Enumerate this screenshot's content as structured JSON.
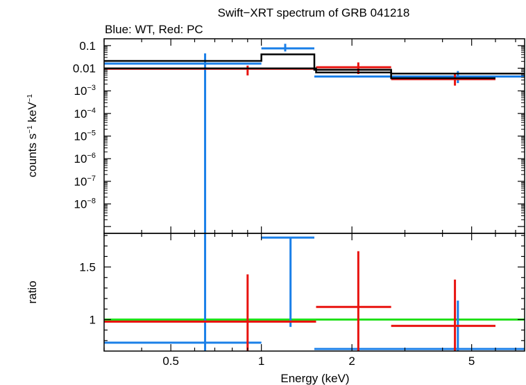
{
  "chart_data": [
    {
      "type": "scatter",
      "panel": "spectrum",
      "title": "Swift−XRT spectrum of GRB 041218",
      "subtitle": "Blue: WT, Red: PC",
      "xlabel": "Energy (keV)",
      "ylabel_parts": [
        "counts s",
        "−1",
        " keV",
        "−1"
      ],
      "x_scale": "log",
      "y_scale": "log",
      "xlim": [
        0.3,
        7.5
      ],
      "ylim": [
        5e-10,
        0.2
      ],
      "y_ticks": [
        {
          "value": 0.1,
          "label": "0.1"
        },
        {
          "value": 0.01,
          "label": "0.01"
        },
        {
          "value": 0.001,
          "base": "10",
          "exp": "−3"
        },
        {
          "value": 0.0001,
          "base": "10",
          "exp": "−4"
        },
        {
          "value": 1e-05,
          "base": "10",
          "exp": "−5"
        },
        {
          "value": 1e-06,
          "base": "10",
          "exp": "−6"
        },
        {
          "value": 1e-07,
          "base": "10",
          "exp": "−7"
        },
        {
          "value": 1e-08,
          "base": "10",
          "exp": "−8"
        }
      ],
      "series": [
        {
          "color": "#1a7fe8",
          "points": [
            {
              "x": 0.65,
              "xlo": 0.3,
              "xhi": 1.0,
              "y": 0.016,
              "ylo": 1e-12,
              "yhi": 0.045
            },
            {
              "x": 1.2,
              "xlo": 1.0,
              "xhi": 1.5,
              "y": 0.075,
              "ylo": 0.055,
              "yhi": 0.12
            },
            {
              "x": 4.5,
              "xlo": 1.5,
              "xhi": 7.5,
              "y": 0.0043,
              "ylo": 0.0022,
              "yhi": 0.0075
            }
          ]
        },
        {
          "color": "#e8120e",
          "points": [
            {
              "x": 0.9,
              "xlo": 0.3,
              "xhi": 1.52,
              "y": 0.0095,
              "ylo": 0.0048,
              "yhi": 0.013
            },
            {
              "x": 2.1,
              "xlo": 1.52,
              "xhi": 2.7,
              "y": 0.011,
              "ylo": 0.0055,
              "yhi": 0.018
            },
            {
              "x": 4.4,
              "xlo": 2.7,
              "xhi": 6.0,
              "y": 0.0033,
              "ylo": 0.0017,
              "yhi": 0.0058
            }
          ]
        }
      ],
      "model_steps": [
        {
          "color": "#000000",
          "steps": [
            {
              "x0": 0.3,
              "x1": 1.0,
              "y": 0.021
            },
            {
              "x0": 1.0,
              "x1": 1.5,
              "y": 0.041
            },
            {
              "x0": 1.5,
              "x1": 2.7,
              "y": 0.0085
            },
            {
              "x0": 2.7,
              "x1": 7.5,
              "y": 0.0058
            }
          ]
        },
        {
          "color": "#000000",
          "steps": [
            {
              "x0": 0.3,
              "x1": 1.52,
              "y": 0.0098
            },
            {
              "x0": 1.52,
              "x1": 2.7,
              "y": 0.0065
            },
            {
              "x0": 2.7,
              "x1": 6.0,
              "y": 0.0036
            }
          ]
        }
      ]
    },
    {
      "type": "scatter",
      "panel": "ratio",
      "xlabel": "Energy (keV)",
      "ylabel": "ratio",
      "x_scale": "log",
      "y_scale": "linear",
      "xlim": [
        0.3,
        7.5
      ],
      "ylim": [
        0.7,
        1.82
      ],
      "x_ticks": [
        {
          "value": 0.5,
          "label": "0.5"
        },
        {
          "value": 1,
          "label": "1"
        },
        {
          "value": 2,
          "label": "2"
        },
        {
          "value": 5,
          "label": "5"
        }
      ],
      "y_ticks": [
        {
          "value": 1,
          "label": "1"
        },
        {
          "value": 1.5,
          "label": "1.5"
        }
      ],
      "reference_line": {
        "y": 1.0,
        "color": "#22e01a"
      },
      "series": [
        {
          "color": "#1a7fe8",
          "points": [
            {
              "x": 0.65,
              "xlo": 0.3,
              "xhi": 1.0,
              "y": 0.78,
              "ylo": 0.7,
              "yhi": 1.82
            },
            {
              "x": 1.25,
              "xlo": 1.0,
              "xhi": 1.5,
              "y": 1.78,
              "ylo": 0.93,
              "yhi": 1.78
            },
            {
              "x": 4.5,
              "xlo": 1.5,
              "xhi": 7.5,
              "y": 0.72,
              "ylo": 0.7,
              "yhi": 1.18
            }
          ]
        },
        {
          "color": "#e8120e",
          "points": [
            {
              "x": 0.9,
              "xlo": 0.3,
              "xhi": 1.52,
              "y": 0.98,
              "ylo": 0.7,
              "yhi": 1.43
            },
            {
              "x": 2.1,
              "xlo": 1.52,
              "xhi": 2.7,
              "y": 1.12,
              "ylo": 0.7,
              "yhi": 1.65
            },
            {
              "x": 4.4,
              "xlo": 2.7,
              "xhi": 6.0,
              "y": 0.94,
              "ylo": 0.7,
              "yhi": 1.38
            }
          ]
        }
      ]
    }
  ]
}
